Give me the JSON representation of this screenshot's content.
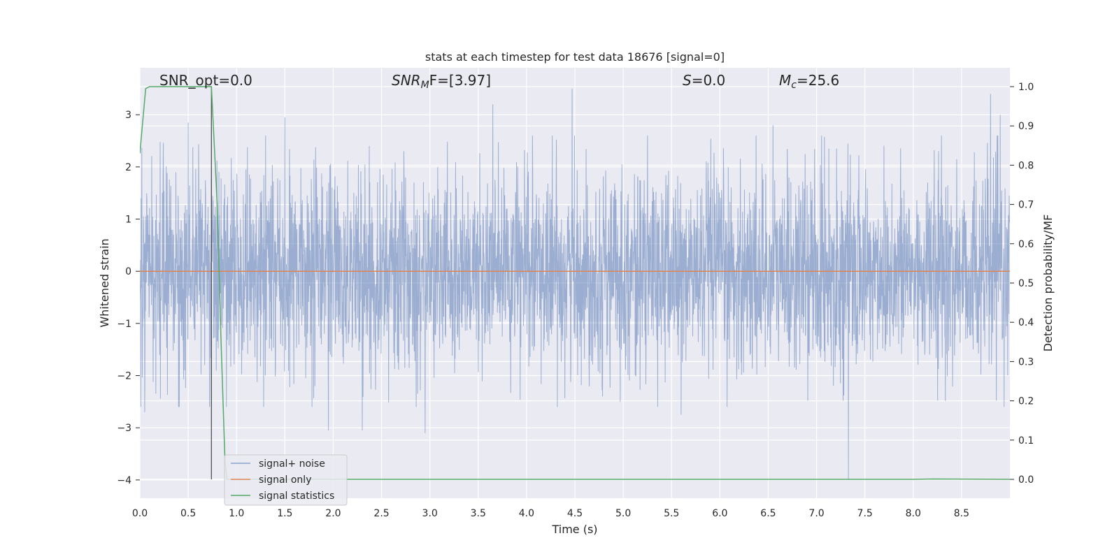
{
  "chart_data": {
    "type": "line",
    "title": "stats at each timestep for test data 18676 [signal=0]",
    "xlabel": "Time (s)",
    "ylabel": "Whitened strain",
    "ylabel_right": "Detection probability/MF",
    "xlim": [
      0.0,
      9.0
    ],
    "ylim": [
      -4.35,
      3.9
    ],
    "ylim_right": [
      -0.048,
      1.048
    ],
    "x_ticks": [
      "0.0",
      "0.5",
      "1.0",
      "1.5",
      "2.0",
      "2.5",
      "3.0",
      "3.5",
      "4.0",
      "4.5",
      "5.0",
      "5.5",
      "6.0",
      "6.5",
      "7.0",
      "7.5",
      "8.0",
      "8.5"
    ],
    "y_ticks": [
      {
        "value": 3,
        "label": "3"
      },
      {
        "value": 2,
        "label": "2"
      },
      {
        "value": 1,
        "label": "1"
      },
      {
        "value": 0,
        "label": "0"
      },
      {
        "value": -1,
        "label": "−1"
      },
      {
        "value": -2,
        "label": "−2"
      },
      {
        "value": -3,
        "label": "−3"
      },
      {
        "value": -4,
        "label": "−4"
      }
    ],
    "y_ticks_right": [
      "0.0",
      "0.1",
      "0.2",
      "0.3",
      "0.4",
      "0.5",
      "0.6",
      "0.7",
      "0.8",
      "0.9",
      "1.0"
    ],
    "grid": true,
    "legend_position": "bottom-left",
    "annotations": {
      "snr_opt": "SNR_opt=0.0",
      "snr_mf_base": "SNR",
      "snr_mf_sub": "M",
      "snr_mf_rest": "F=[3.97]",
      "s_stat_italic": "S",
      "s_stat_rest": "=0.0",
      "mc_italic": "M",
      "mc_sub": "c",
      "mc_rest": "=25.6"
    },
    "marker_line_x": 0.74,
    "series": [
      {
        "name": "signal+ noise",
        "color": "#4c72b0",
        "opacity": 0.5,
        "approx_spread": 1.2,
        "peaks": [
          {
            "x": 0.05,
            "y": -2.7
          },
          {
            "x": 0.5,
            "y": 2.85
          },
          {
            "x": 1.5,
            "y": 2.95
          },
          {
            "x": 1.95,
            "y": -3.05
          },
          {
            "x": 2.3,
            "y": -3.05
          },
          {
            "x": 2.95,
            "y": -3.1
          },
          {
            "x": 3.65,
            "y": 3.2
          },
          {
            "x": 4.47,
            "y": 3.5
          },
          {
            "x": 5.6,
            "y": -2.75
          },
          {
            "x": 6.55,
            "y": 2.8
          },
          {
            "x": 7.33,
            "y": -4.0
          },
          {
            "x": 8.8,
            "y": 3.4
          },
          {
            "x": 8.9,
            "y": 3.0
          }
        ]
      },
      {
        "name": "signal only",
        "color": "#dd8452",
        "axis": "left",
        "x": [
          0.0,
          9.0
        ],
        "y": [
          0.0,
          0.0
        ]
      },
      {
        "name": "signal statistics",
        "color": "#55a868",
        "axis": "right",
        "x": [
          0.0,
          0.06,
          0.1,
          0.3,
          0.5,
          0.74,
          0.8,
          0.84,
          0.88,
          0.9,
          1.0,
          5.0,
          8.0,
          8.2,
          9.0
        ],
        "y": [
          0.83,
          0.995,
          1.0,
          1.0,
          1.0,
          1.0,
          0.7,
          0.35,
          0.05,
          0.0,
          0.0,
          0.0,
          0.0,
          0.001,
          0.0
        ]
      }
    ]
  }
}
